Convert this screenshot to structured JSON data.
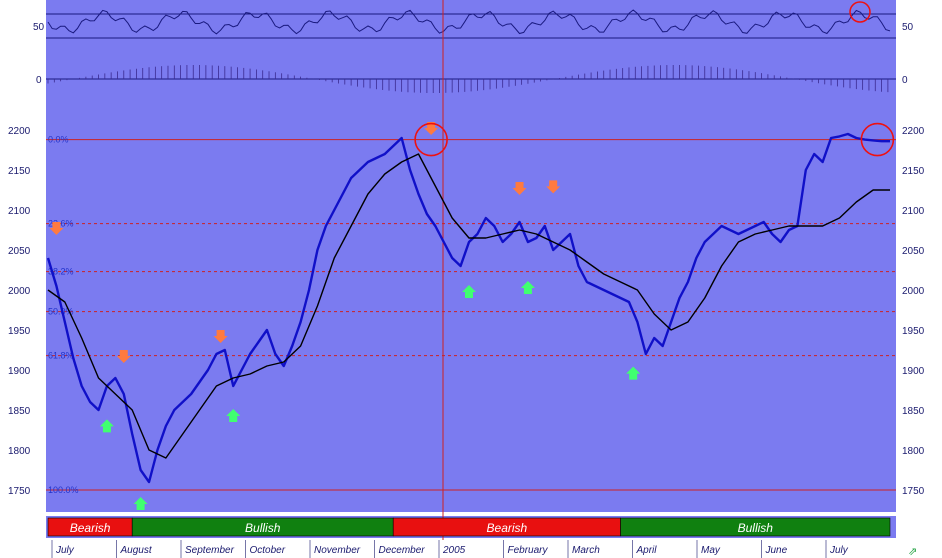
{
  "chart_data": {
    "type": "line",
    "indicator": {
      "y_ticks": [
        "50",
        "50"
      ],
      "level": 50,
      "panel_color": "#7b7bf0"
    },
    "momentum": {
      "y_ticks": [
        "0",
        "0"
      ]
    },
    "price": {
      "ylim": [
        1725,
        2225
      ],
      "y_ticks": [
        1750,
        1800,
        1850,
        1900,
        1950,
        2000,
        2050,
        2100,
        2150,
        2200
      ],
      "y_tick_labels": [
        "1750",
        "1800",
        "1850",
        "1900",
        "1950",
        "2000",
        "2050",
        "2100",
        "2150",
        "2200"
      ],
      "fib_levels": [
        {
          "label": "0.0%",
          "value": 2188
        },
        {
          "label": "23.6%",
          "value": 2083
        },
        {
          "label": "38.2%",
          "value": 2023
        },
        {
          "label": "50.0%",
          "value": 1973
        },
        {
          "label": "61.8%",
          "value": 1918
        },
        {
          "label": "100.0%",
          "value": 1750
        }
      ],
      "hline": 2188,
      "series": [
        {
          "color": "#1010c8",
          "x": [
            0,
            2,
            4,
            6,
            8,
            10,
            12,
            14,
            16,
            18,
            20,
            22,
            24,
            26,
            28,
            30,
            32,
            34,
            36,
            38,
            40,
            42,
            44,
            46,
            48,
            50,
            52,
            54,
            56,
            58,
            60,
            62,
            64,
            66,
            68,
            70,
            72,
            74,
            76,
            78,
            80,
            82,
            84,
            86,
            88,
            90,
            92,
            94,
            96,
            98,
            100,
            102,
            104,
            106,
            108,
            110,
            112,
            114,
            116,
            118,
            120,
            122,
            124,
            126,
            128,
            130,
            132,
            134,
            136,
            138,
            140,
            142,
            144,
            146,
            148,
            150,
            152,
            154,
            156,
            158,
            160,
            162,
            164,
            166,
            168,
            170,
            172,
            174,
            176,
            178,
            180,
            182,
            184,
            186,
            188,
            190,
            192,
            194,
            196,
            198,
            200
          ],
          "values": [
            2040,
            2005,
            1960,
            1915,
            1880,
            1860,
            1850,
            1880,
            1890,
            1870,
            1820,
            1775,
            1760,
            1800,
            1830,
            1850,
            1860,
            1870,
            1885,
            1900,
            1920,
            1925,
            1880,
            1900,
            1920,
            1935,
            1950,
            1920,
            1905,
            1930,
            1960,
            2000,
            2050,
            2080,
            2100,
            2120,
            2140,
            2150,
            2160,
            2165,
            2170,
            2180,
            2190,
            2150,
            2120,
            2095,
            2080,
            2060,
            2040,
            2030,
            2060,
            2070,
            2090,
            2080,
            2060,
            2070,
            2085,
            2060,
            2065,
            2080,
            2050,
            2060,
            2070,
            2030,
            2010,
            2005,
            2000,
            1995,
            1990,
            1985,
            1960,
            1920,
            1940,
            1930,
            1960,
            1990,
            2010,
            2040,
            2060,
            2070,
            2080,
            2075,
            2070,
            2075,
            2080,
            2085,
            2070,
            2060,
            2075,
            2080,
            2150,
            2170,
            2160,
            2190,
            2192,
            2195,
            2190,
            2188,
            2187,
            2186,
            2186
          ]
        },
        {
          "color": "#000000",
          "x": [
            0,
            4,
            8,
            12,
            16,
            20,
            24,
            28,
            32,
            36,
            40,
            44,
            48,
            52,
            56,
            60,
            64,
            68,
            72,
            76,
            80,
            84,
            88,
            92,
            96,
            100,
            104,
            108,
            112,
            116,
            120,
            124,
            128,
            132,
            136,
            140,
            144,
            148,
            152,
            156,
            160,
            164,
            168,
            172,
            176,
            180,
            184,
            188,
            192,
            196,
            200
          ],
          "values": [
            2000,
            1985,
            1940,
            1890,
            1870,
            1850,
            1800,
            1790,
            1820,
            1850,
            1880,
            1890,
            1895,
            1905,
            1910,
            1930,
            1980,
            2040,
            2080,
            2120,
            2145,
            2160,
            2170,
            2130,
            2090,
            2065,
            2065,
            2070,
            2075,
            2070,
            2060,
            2050,
            2035,
            2020,
            2010,
            2000,
            1970,
            1950,
            1960,
            1990,
            2030,
            2060,
            2070,
            2075,
            2080,
            2080,
            2080,
            2090,
            2110,
            2125,
            2125
          ]
        }
      ],
      "markers": {
        "down_arrows": [
          {
            "x": 2,
            "value": 2060
          },
          {
            "x": 18,
            "value": 1900
          },
          {
            "x": 41,
            "value": 1925
          },
          {
            "x": 91,
            "value": 2185
          },
          {
            "x": 112,
            "value": 2110
          },
          {
            "x": 120,
            "value": 2112
          }
        ],
        "up_arrows": [
          {
            "x": 14,
            "value": 1842
          },
          {
            "x": 22,
            "value": 1745
          },
          {
            "x": 44,
            "value": 1855
          },
          {
            "x": 100,
            "value": 2010
          },
          {
            "x": 114,
            "value": 2015
          },
          {
            "x": 139,
            "value": 1908
          }
        ],
        "circles": [
          {
            "x": 91,
            "value": 2188
          },
          {
            "x": 197,
            "value": 2188
          }
        ]
      }
    },
    "x_labels": [
      "July",
      "August",
      "September",
      "October",
      "November",
      "December",
      "2005",
      "February",
      "March",
      "April",
      "May",
      "June",
      "July"
    ],
    "regimes": [
      {
        "label": "Bearish",
        "x_start": 0,
        "x_end": 20,
        "color": "#e81010"
      },
      {
        "label": "Bullish",
        "x_start": 20,
        "x_end": 82,
        "color": "#108010"
      },
      {
        "label": "Bearish",
        "x_start": 82,
        "x_end": 136,
        "color": "#e81010"
      },
      {
        "label": "Bullish",
        "x_start": 136,
        "x_end": 200,
        "color": "#108010"
      }
    ],
    "colors": {
      "panel": "#7b7bf0",
      "price": "#1010c8",
      "average": "#000000",
      "grid_red": "#cc2222",
      "down_arrow": "#ff7a40",
      "up_arrow": "#40ff70",
      "circle": "#ee1111"
    }
  }
}
